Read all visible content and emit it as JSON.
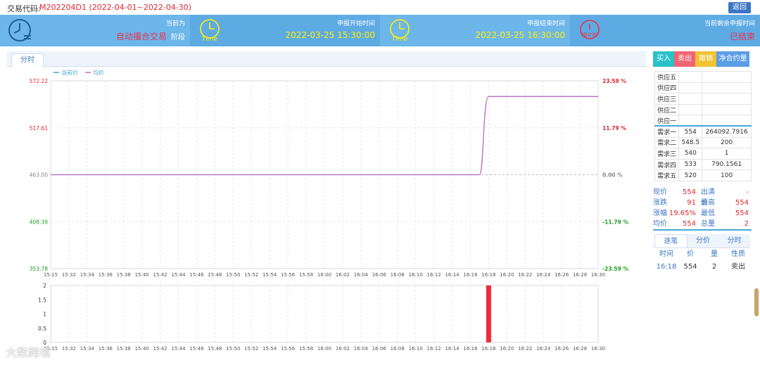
{
  "header": {
    "code_label": "交易代码:",
    "code_value": "M202204D1 (2022-04-01~2022-04-30)",
    "back_label": "返回"
  },
  "status": {
    "current_title": "当前为",
    "current_value": "自动撮合交易",
    "current_stage": "阶段",
    "start_title": "申报开始时间",
    "start_value": "2022-03-25 15:30:00",
    "end_title": "申报结束时间",
    "end_value": "2022-03-25 16:30:00",
    "remain_title": "当前剩余申报时间",
    "remain_value": "已结束",
    "icon_time_text": "Time",
    "icon_countdown_text": "倒计时"
  },
  "tabs": {
    "fenshi": "分时"
  },
  "chart_data": [
    {
      "type": "line",
      "legend": [
        "当前价",
        "均价"
      ],
      "x_ticks": [
        "15:15",
        "15:32",
        "15:34",
        "15:36",
        "15:38",
        "15:40",
        "15:42",
        "15:44",
        "15:46",
        "15:48",
        "15:50",
        "15:52",
        "15:54",
        "15:56",
        "15:58",
        "16:00",
        "16:02",
        "16:04",
        "16:06",
        "16:08",
        "16:10",
        "16:12",
        "16:14",
        "16:16",
        "16:18",
        "16:20",
        "16:22",
        "16:24",
        "16:26",
        "16:28",
        "16:30"
      ],
      "y_ticks": [
        "572.22",
        "517.61",
        "463.00",
        "408.39",
        "353.78"
      ],
      "y_right_ticks": [
        "23.59 %",
        "11.79 %",
        "0.00 %",
        "-11.79 %",
        "-23.59 %"
      ],
      "ylim": [
        353.78,
        572.22
      ],
      "series": [
        {
          "name": "当前价",
          "x": [
            "15:15",
            "16:17",
            "16:18",
            "16:30"
          ],
          "values": [
            463,
            463,
            554,
            554
          ]
        },
        {
          "name": "均价",
          "x": [
            "15:15",
            "16:17",
            "16:18",
            "16:30"
          ],
          "values": [
            463,
            463,
            554,
            554
          ]
        }
      ]
    },
    {
      "type": "bar",
      "y_ticks": [
        "2",
        "1.5",
        "1",
        "0.5",
        "0"
      ],
      "ylim": [
        0,
        2
      ],
      "categories": [
        "16:18"
      ],
      "values": [
        2
      ]
    }
  ],
  "actions": {
    "buy": "买入",
    "sell": "卖出",
    "cancel": "撤销",
    "net": "净合约量"
  },
  "orderbook": {
    "asks": [
      {
        "label": "供应五",
        "price": "",
        "qty": ""
      },
      {
        "label": "供应四",
        "price": "",
        "qty": ""
      },
      {
        "label": "供应三",
        "price": "",
        "qty": ""
      },
      {
        "label": "供应二",
        "price": "",
        "qty": ""
      },
      {
        "label": "供应一",
        "price": "",
        "qty": ""
      }
    ],
    "bids": [
      {
        "label": "需求一",
        "price": "554",
        "qty": "264092.7916"
      },
      {
        "label": "需求二",
        "price": "548.5",
        "qty": "200"
      },
      {
        "label": "需求三",
        "price": "540",
        "qty": "1"
      },
      {
        "label": "需求四",
        "price": "533",
        "qty": "790.1561"
      },
      {
        "label": "需求五",
        "price": "520",
        "qty": "100"
      }
    ]
  },
  "stats": [
    {
      "l1": "现价",
      "v1": "554",
      "l2": "出清价",
      "v2": "-"
    },
    {
      "l1": "涨跌",
      "v1": "91",
      "l2": "最高",
      "v2": "554"
    },
    {
      "l1": "涨幅",
      "v1": "19.65%",
      "l2": "最低",
      "v2": "554"
    },
    {
      "l1": "均价",
      "v1": "554",
      "l2": "总量",
      "v2": "2"
    }
  ],
  "trades": {
    "tabs": [
      "逐笔",
      "分价",
      "分时"
    ],
    "headers": [
      "时间",
      "价",
      "量",
      "性质"
    ],
    "rows": [
      {
        "time": "16:18",
        "price": "554",
        "qty": "2",
        "type": "卖出"
      }
    ]
  },
  "watermark": "大数跨境"
}
